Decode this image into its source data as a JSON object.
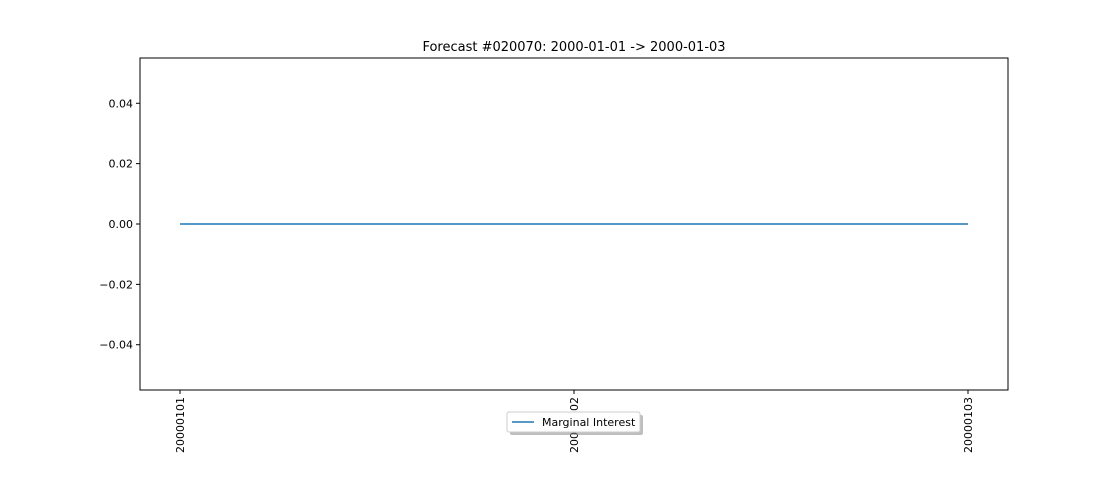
{
  "chart_data": {
    "type": "line",
    "title": "Forecast #020070: 2000-01-01 -> 2000-01-03",
    "xlabel": "",
    "ylabel": "",
    "x": [
      "20000101",
      "20000102",
      "20000103"
    ],
    "x_tick_labels": [
      "20000101",
      "20000102",
      "20000103"
    ],
    "y_tick_values": [
      -0.04,
      -0.02,
      0.0,
      0.02,
      0.04
    ],
    "y_tick_labels": [
      "−0.04",
      "−0.02",
      "0.00",
      "0.02",
      "0.04"
    ],
    "ylim": [
      -0.055,
      0.055
    ],
    "grid": false,
    "legend_position": "bottom-center",
    "series": [
      {
        "name": "Marginal Interest",
        "color": "#1f77b4",
        "values": [
          0,
          0,
          0
        ]
      }
    ]
  }
}
